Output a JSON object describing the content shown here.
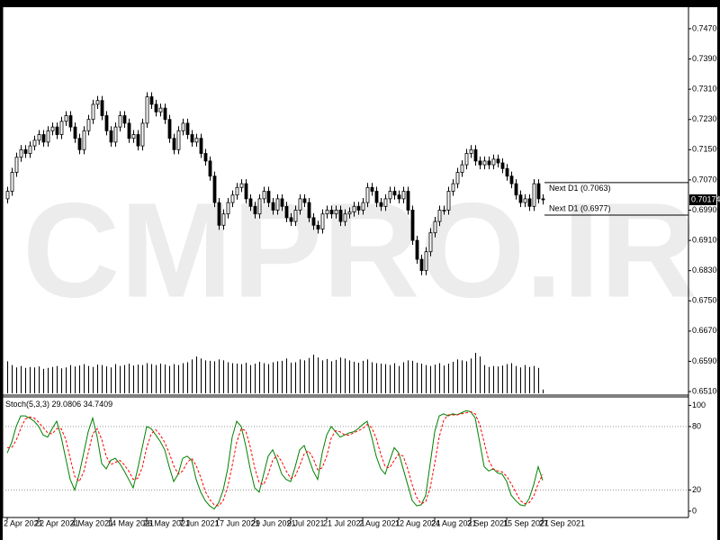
{
  "chart_data": {
    "type": "candlestick",
    "categories": [
      "2 Apr 2021",
      null,
      null,
      null,
      null,
      null,
      null,
      "22 Apr 2021",
      null,
      null,
      null,
      null,
      null,
      null,
      null,
      "4 May 2021",
      null,
      null,
      null,
      null,
      null,
      null,
      null,
      "14 May 2021",
      null,
      null,
      null,
      null,
      null,
      null,
      null,
      "26 May 2021",
      null,
      null,
      null,
      null,
      null,
      null,
      null,
      "7 Jun 2021",
      null,
      null,
      null,
      null,
      null,
      null,
      null,
      "17 Jun 2021",
      null,
      null,
      null,
      null,
      null,
      null,
      null,
      "29 Jun 2021",
      null,
      null,
      null,
      null,
      null,
      null,
      null,
      "9 Jul 2021",
      null,
      null,
      null,
      null,
      null,
      null,
      null,
      "21 Jul 2021",
      null,
      null,
      null,
      null,
      null,
      null,
      null,
      "2 Aug 2021",
      null,
      null,
      null,
      null,
      null,
      null,
      null,
      "12 Aug 2021",
      null,
      null,
      null,
      null,
      null,
      null,
      null,
      "24 Aug 2021",
      null,
      null,
      null,
      null,
      null,
      null,
      null,
      "3 Sep 2021",
      null,
      null,
      null,
      null,
      null,
      null,
      null,
      "15 Sep 2021",
      null,
      null,
      null,
      null,
      null,
      null,
      null,
      "27 Sep 2021"
    ],
    "open": [
      0.702,
      0.704,
      0.709,
      0.713,
      0.715,
      0.714,
      0.716,
      0.7175,
      0.719,
      0.717,
      0.72,
      0.721,
      0.719,
      0.7225,
      0.724,
      0.721,
      0.718,
      0.715,
      0.72,
      0.723,
      0.727,
      0.728,
      0.724,
      0.72,
      0.717,
      0.721,
      0.724,
      0.722,
      0.718,
      0.719,
      0.716,
      0.722,
      0.729,
      0.727,
      0.725,
      0.726,
      0.723,
      0.718,
      0.715,
      0.72,
      0.722,
      0.719,
      0.717,
      0.718,
      0.714,
      0.712,
      0.708,
      0.701,
      0.695,
      0.698,
      0.701,
      0.703,
      0.705,
      0.706,
      0.702,
      0.7,
      0.698,
      0.702,
      0.704,
      0.701,
      0.699,
      0.702,
      0.7,
      0.697,
      0.696,
      0.699,
      0.702,
      0.701,
      0.697,
      0.695,
      0.694,
      0.698,
      0.699,
      0.698,
      0.699,
      0.696,
      0.698,
      0.6985,
      0.7,
      0.699,
      0.701,
      0.705,
      0.704,
      0.701,
      0.7,
      0.702,
      0.704,
      0.703,
      0.702,
      0.704,
      0.699,
      0.691,
      0.686,
      0.683,
      0.688,
      0.693,
      0.696,
      0.699,
      0.699,
      0.704,
      0.706,
      0.709,
      0.711,
      0.714,
      0.715,
      0.712,
      0.711,
      0.712,
      0.711,
      0.7125,
      0.7115,
      0.71,
      0.708,
      0.706,
      0.703,
      0.701,
      0.702,
      0.7,
      0.706,
      0.702
    ],
    "high": [
      0.7052,
      0.7102,
      0.7142,
      0.7162,
      0.7162,
      0.7172,
      0.7187,
      0.7202,
      0.7202,
      0.7212,
      0.7222,
      0.7222,
      0.7237,
      0.7252,
      0.7252,
      0.7222,
      0.7192,
      0.7212,
      0.7242,
      0.7282,
      0.7292,
      0.7292,
      0.7252,
      0.7212,
      0.7222,
      0.7252,
      0.7252,
      0.7232,
      0.7202,
      0.7202,
      0.7232,
      0.7302,
      0.7302,
      0.7282,
      0.7272,
      0.7272,
      0.7242,
      0.7192,
      0.7212,
      0.7232,
      0.7232,
      0.7202,
      0.7192,
      0.7192,
      0.7152,
      0.7132,
      0.7092,
      0.7022,
      0.6992,
      0.7022,
      0.7042,
      0.7062,
      0.7072,
      0.7072,
      0.7032,
      0.7012,
      0.7032,
      0.7052,
      0.7052,
      0.7022,
      0.7032,
      0.7032,
      0.7012,
      0.6982,
      0.7002,
      0.7032,
      0.7032,
      0.7022,
      0.6982,
      0.6962,
      0.6992,
      0.7002,
      0.7002,
      0.7002,
      0.7002,
      0.6992,
      0.6997,
      0.7012,
      0.7012,
      0.7022,
      0.7062,
      0.7062,
      0.7052,
      0.7022,
      0.7032,
      0.7052,
      0.7052,
      0.7042,
      0.7052,
      0.7052,
      0.7002,
      0.6922,
      0.6872,
      0.6892,
      0.6942,
      0.6972,
      0.7002,
      0.7002,
      0.7052,
      0.7072,
      0.7102,
      0.7122,
      0.7152,
      0.7162,
      0.7162,
      0.7132,
      0.7132,
      0.7132,
      0.7137,
      0.7137,
      0.7127,
      0.7112,
      0.7092,
      0.7072,
      0.7042,
      0.7032,
      0.7032,
      0.7072,
      0.7072,
      0.7032
    ],
    "low": [
      0.7008,
      0.7028,
      0.7078,
      0.7118,
      0.7128,
      0.7128,
      0.7148,
      0.7163,
      0.7158,
      0.7158,
      0.7188,
      0.7178,
      0.7178,
      0.7213,
      0.7198,
      0.7168,
      0.7138,
      0.7138,
      0.7188,
      0.7218,
      0.7258,
      0.7228,
      0.7188,
      0.7158,
      0.7158,
      0.7198,
      0.7208,
      0.7168,
      0.7168,
      0.7148,
      0.7148,
      0.7208,
      0.7258,
      0.7238,
      0.7238,
      0.7218,
      0.7168,
      0.7138,
      0.7138,
      0.7188,
      0.7178,
      0.7158,
      0.7158,
      0.7128,
      0.7108,
      0.7068,
      0.6998,
      0.6938,
      0.6938,
      0.6968,
      0.6998,
      0.7018,
      0.7038,
      0.7008,
      0.6988,
      0.6968,
      0.6968,
      0.7008,
      0.6998,
      0.6978,
      0.6978,
      0.6988,
      0.6958,
      0.6948,
      0.6948,
      0.6978,
      0.6998,
      0.6958,
      0.6938,
      0.6928,
      0.6928,
      0.6968,
      0.6968,
      0.6968,
      0.6948,
      0.6948,
      0.6968,
      0.6973,
      0.6978,
      0.6978,
      0.6998,
      0.7028,
      0.6998,
      0.6988,
      0.6988,
      0.7008,
      0.7018,
      0.7008,
      0.7008,
      0.6978,
      0.6898,
      0.6848,
      0.6818,
      0.6818,
      0.6868,
      0.6918,
      0.6948,
      0.6978,
      0.6978,
      0.7028,
      0.7048,
      0.7078,
      0.7098,
      0.7128,
      0.7108,
      0.7098,
      0.7098,
      0.7098,
      0.7098,
      0.7103,
      0.7088,
      0.7068,
      0.7048,
      0.7018,
      0.6998,
      0.6998,
      0.6988,
      0.6988,
      0.7008,
      0.7005
    ],
    "close": [
      0.704,
      0.709,
      0.713,
      0.715,
      0.714,
      0.716,
      0.7175,
      0.719,
      0.717,
      0.72,
      0.721,
      0.719,
      0.7225,
      0.724,
      0.721,
      0.718,
      0.715,
      0.72,
      0.723,
      0.727,
      0.728,
      0.724,
      0.72,
      0.717,
      0.721,
      0.724,
      0.722,
      0.718,
      0.719,
      0.716,
      0.722,
      0.729,
      0.727,
      0.725,
      0.726,
      0.723,
      0.718,
      0.715,
      0.72,
      0.722,
      0.719,
      0.717,
      0.718,
      0.714,
      0.712,
      0.708,
      0.701,
      0.695,
      0.698,
      0.701,
      0.703,
      0.705,
      0.706,
      0.702,
      0.7,
      0.698,
      0.702,
      0.704,
      0.701,
      0.699,
      0.702,
      0.7,
      0.697,
      0.696,
      0.699,
      0.702,
      0.701,
      0.697,
      0.695,
      0.694,
      0.698,
      0.699,
      0.698,
      0.699,
      0.696,
      0.698,
      0.6985,
      0.7,
      0.699,
      0.701,
      0.705,
      0.704,
      0.701,
      0.7,
      0.702,
      0.704,
      0.703,
      0.702,
      0.704,
      0.699,
      0.691,
      0.686,
      0.683,
      0.688,
      0.693,
      0.696,
      0.699,
      0.699,
      0.704,
      0.706,
      0.709,
      0.711,
      0.714,
      0.715,
      0.712,
      0.711,
      0.712,
      0.711,
      0.7125,
      0.7115,
      0.71,
      0.708,
      0.706,
      0.703,
      0.701,
      0.702,
      0.7,
      0.706,
      0.702,
      0.70174
    ],
    "last_price": 0.70174,
    "volume": [
      68000,
      60000,
      55000,
      58000,
      54000,
      56000,
      55000,
      57000,
      52000,
      54000,
      56000,
      58000,
      53000,
      55000,
      60000,
      57000,
      59000,
      62000,
      58000,
      56000,
      61000,
      60000,
      57000,
      55000,
      62000,
      58000,
      60000,
      63000,
      59000,
      61000,
      60000,
      64000,
      62000,
      60000,
      63000,
      61000,
      58000,
      62000,
      60000,
      64000,
      66000,
      72000,
      78000,
      74000,
      70000,
      69000,
      68000,
      72000,
      70000,
      66000,
      64000,
      63000,
      62000,
      65000,
      60000,
      63000,
      67000,
      64000,
      62000,
      66000,
      68000,
      69000,
      74000,
      65000,
      66000,
      72000,
      70000,
      75000,
      82000,
      76000,
      70000,
      73000,
      68000,
      71000,
      76000,
      74000,
      70000,
      67000,
      65000,
      69000,
      72000,
      66000,
      64000,
      63000,
      62000,
      60000,
      64000,
      58000,
      66000,
      70000,
      69000,
      65000,
      63000,
      60000,
      58000,
      61000,
      64000,
      59000,
      63000,
      67000,
      72000,
      70000,
      68000,
      74000,
      86000,
      78000,
      60000,
      56000,
      58000,
      57000,
      59000,
      62000,
      64000,
      58000,
      55000,
      60000,
      56000,
      58000,
      54000,
      8000
    ],
    "ylim": [
      0.6503,
      0.7527
    ],
    "yticks": [
      {
        "value": 0.747,
        "label": "0.74700"
      },
      {
        "value": 0.739,
        "label": "0.73900"
      },
      {
        "value": 0.731,
        "label": "0.73100"
      },
      {
        "value": 0.723,
        "label": "0.72300"
      },
      {
        "value": 0.715,
        "label": "0.71500"
      },
      {
        "value": 0.707,
        "label": "0.70700"
      },
      {
        "value": 0.699,
        "label": "0.69900"
      },
      {
        "value": 0.691,
        "label": "0.69100"
      },
      {
        "value": 0.683,
        "label": "0.68300"
      },
      {
        "value": 0.675,
        "label": "0.67500"
      },
      {
        "value": 0.667,
        "label": "0.66700"
      },
      {
        "value": 0.659,
        "label": "0.65900"
      },
      {
        "value": 0.651,
        "label": "0.65100"
      }
    ],
    "levels": [
      {
        "label": "Next D1 (0.7063)",
        "value": 0.7063
      },
      {
        "label": "Next D1 (0.6977)",
        "value": 0.6977
      }
    ],
    "watermark": "CMPRO.IR",
    "indicator": {
      "type": "line",
      "title": "Stoch(5,3,3)",
      "ylim": [
        -6,
        108
      ],
      "yticks": [
        0,
        20,
        80,
        100
      ],
      "levels": [
        20,
        80
      ],
      "series": [
        {
          "color": "#008000",
          "dashed": false,
          "values": [
            55,
            65,
            80,
            90,
            90,
            88,
            85,
            80,
            72,
            70,
            78,
            85,
            70,
            50,
            30,
            20,
            35,
            55,
            75,
            88,
            70,
            45,
            40,
            48,
            50,
            45,
            38,
            30,
            22,
            40,
            60,
            80,
            78,
            72,
            66,
            58,
            42,
            28,
            35,
            50,
            52,
            48,
            30,
            18,
            10,
            5,
            2,
            8,
            20,
            40,
            70,
            85,
            80,
            62,
            40,
            22,
            18,
            35,
            52,
            58,
            48,
            35,
            30,
            28,
            42,
            58,
            62,
            50,
            38,
            30,
            55,
            72,
            80,
            75,
            70,
            72,
            74,
            75,
            78,
            82,
            85,
            70,
            52,
            40,
            35,
            48,
            60,
            55,
            40,
            25,
            10,
            5,
            6,
            15,
            45,
            75,
            90,
            92,
            90,
            92,
            91,
            93,
            95,
            94,
            88,
            65,
            42,
            38,
            40,
            36,
            35,
            28,
            15,
            10,
            6,
            5,
            12,
            25,
            42,
            29.0806
          ]
        },
        {
          "color": "#ff0000",
          "dashed": true,
          "values": [
            60,
            60,
            67,
            78,
            87,
            89,
            88,
            84,
            79,
            74,
            73,
            78,
            78,
            68,
            50,
            33,
            28,
            37,
            55,
            73,
            78,
            68,
            52,
            44,
            46,
            48,
            44,
            38,
            30,
            31,
            41,
            60,
            73,
            77,
            72,
            65,
            55,
            43,
            35,
            38,
            46,
            50,
            43,
            32,
            19,
            11,
            6,
            5,
            10,
            23,
            43,
            65,
            78,
            76,
            61,
            41,
            27,
            25,
            35,
            48,
            53,
            47,
            38,
            31,
            33,
            43,
            54,
            57,
            50,
            39,
            41,
            52,
            69,
            76,
            75,
            72,
            72,
            74,
            76,
            78,
            82,
            79,
            69,
            54,
            42,
            41,
            48,
            54,
            52,
            40,
            25,
            13,
            7,
            9,
            22,
            45,
            70,
            86,
            91,
            91,
            91,
            92,
            93,
            94,
            92,
            82,
            65,
            48,
            40,
            38,
            37,
            33,
            26,
            18,
            10,
            7,
            8,
            14,
            26,
            34.7409
          ]
        }
      ]
    }
  }
}
